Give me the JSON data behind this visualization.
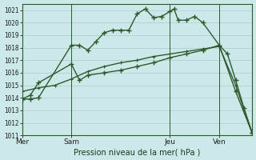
{
  "background_color": "#cce8e8",
  "grid_color": "#aacccc",
  "line_color": "#2d5a2d",
  "title": "Pression niveau de la mer( hPa )",
  "x_tick_labels": [
    "Mer",
    "Sam",
    "Jeu",
    "Ven"
  ],
  "x_tick_positions": [
    0,
    6,
    18,
    24
  ],
  "ylim": [
    1011,
    1021.5
  ],
  "yticks": [
    1011,
    1012,
    1013,
    1014,
    1015,
    1016,
    1017,
    1018,
    1019,
    1020,
    1021
  ],
  "series1_x": [
    0,
    1,
    2,
    6,
    7,
    8,
    9,
    10,
    11,
    12,
    13,
    14,
    15,
    16,
    17,
    18,
    18.5,
    19,
    20,
    21,
    22,
    24,
    25,
    26,
    27,
    28
  ],
  "series1_y": [
    1013.9,
    1013.9,
    1014.0,
    1018.2,
    1018.2,
    1017.8,
    1018.5,
    1019.2,
    1019.4,
    1019.4,
    1019.4,
    1020.7,
    1021.1,
    1020.4,
    1020.5,
    1020.9,
    1021.1,
    1020.2,
    1020.2,
    1020.5,
    1020.0,
    1018.2,
    1017.5,
    1015.4,
    1013.2,
    1011.2
  ],
  "series2_x": [
    0,
    1,
    2,
    6,
    7,
    8,
    10,
    12,
    14,
    16,
    18,
    20,
    22,
    24,
    26,
    28
  ],
  "series2_y": [
    1013.9,
    1014.2,
    1015.2,
    1016.7,
    1015.4,
    1015.8,
    1016.0,
    1016.2,
    1016.5,
    1016.8,
    1017.2,
    1017.5,
    1017.8,
    1018.2,
    1014.5,
    1011.2
  ],
  "series3_x": [
    0,
    2,
    4,
    6,
    8,
    10,
    12,
    14,
    16,
    18,
    20,
    22,
    24,
    26,
    28
  ],
  "series3_y": [
    1014.5,
    1014.8,
    1015.0,
    1015.5,
    1016.1,
    1016.5,
    1016.8,
    1017.0,
    1017.3,
    1017.5,
    1017.7,
    1017.9,
    1018.1,
    1015.0,
    1011.2
  ],
  "vlines_x": [
    6,
    18,
    24
  ],
  "xlim": [
    0,
    28
  ]
}
